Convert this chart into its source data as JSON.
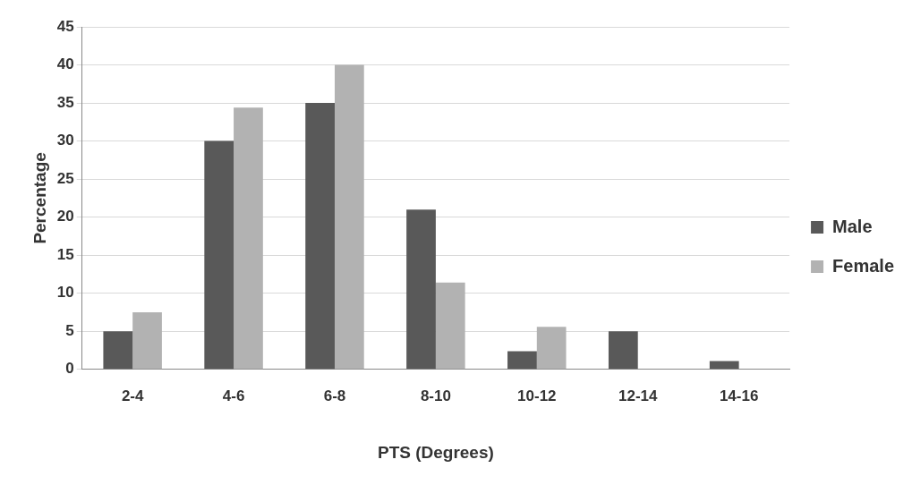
{
  "chart_data": {
    "type": "bar",
    "xlabel": "PTS (Degrees)",
    "ylabel": "Percentage",
    "categories": [
      "2-4",
      "4-6",
      "6-8",
      "8-10",
      "10-12",
      "12-14",
      "14-16"
    ],
    "series": [
      {
        "name": "Male",
        "color": "#595959",
        "values": [
          5,
          30,
          35,
          21,
          2.4,
          5,
          1.1
        ]
      },
      {
        "name": "Female",
        "color": "#b2b2b2",
        "values": [
          7.5,
          34.4,
          40,
          11.4,
          5.6,
          0,
          0
        ]
      }
    ],
    "ylim": [
      0,
      45
    ],
    "yticks": [
      0,
      5,
      10,
      15,
      20,
      25,
      30,
      35,
      40,
      45
    ],
    "grid": "y",
    "legend": "right"
  }
}
